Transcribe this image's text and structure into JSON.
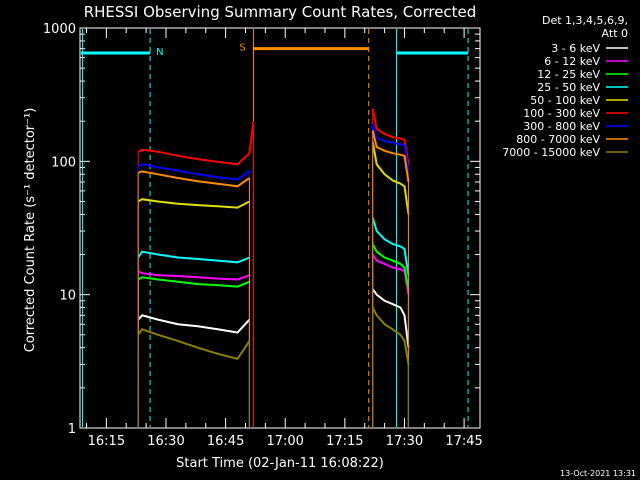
{
  "chart_data": {
    "type": "line",
    "title": "RHESSI Observing Summary Count Rates, Corrected",
    "xlabel": "Start Time (02-Jan-11 16:08:22)",
    "ylabel": "Corrected Count Rate (s⁻¹ detector⁻¹)",
    "y_scale": "log",
    "ylim": [
      1,
      1000
    ],
    "xlim": [
      "16:08:22",
      "17:49:00"
    ],
    "x_tick_labels": [
      "16:15",
      "16:30",
      "16:45",
      "17:00",
      "17:15",
      "17:30",
      "17:45"
    ],
    "y_tick_labels": [
      "1",
      "10",
      "100",
      "1000"
    ],
    "legend": {
      "title": "Det 1,3,4,5,6,9,",
      "subtitle": "Att 0",
      "placement": "top-right"
    },
    "series": [
      {
        "name": "3 - 6 keV",
        "color": "#ffffff",
        "segments": [
          {
            "x": [
              "16:23",
              "16:24",
              "16:28",
              "16:33",
              "16:38",
              "16:43",
              "16:48",
              "16:51"
            ],
            "y": [
              6.5,
              7,
              6.5,
              6,
              5.8,
              5.5,
              5.2,
              6.5
            ]
          },
          {
            "x": [
              "17:22",
              "17:23",
              "17:25",
              "17:27",
              "17:29",
              "17:30",
              "17:31"
            ],
            "y": [
              11,
              10,
              9,
              8.5,
              8,
              7,
              4
            ]
          }
        ]
      },
      {
        "name": "6 - 12 keV",
        "color": "#ff00ff",
        "segments": [
          {
            "x": [
              "16:23",
              "16:24",
              "16:28",
              "16:33",
              "16:38",
              "16:43",
              "16:48",
              "16:51"
            ],
            "y": [
              15,
              14.5,
              14,
              13.8,
              13.5,
              13.2,
              13,
              14
            ]
          },
          {
            "x": [
              "17:22",
              "17:23",
              "17:25",
              "17:27",
              "17:29",
              "17:30",
              "17:31"
            ],
            "y": [
              20,
              18,
              17,
              16,
              15.5,
              15,
              10
            ]
          }
        ]
      },
      {
        "name": "12 - 25 keV",
        "color": "#00ff00",
        "segments": [
          {
            "x": [
              "16:23",
              "16:24",
              "16:28",
              "16:33",
              "16:38",
              "16:43",
              "16:48",
              "16:51"
            ],
            "y": [
              13,
              13.5,
              13,
              12.5,
              12,
              11.8,
              11.5,
              12.5
            ]
          },
          {
            "x": [
              "17:22",
              "17:23",
              "17:25",
              "17:27",
              "17:29",
              "17:30",
              "17:31"
            ],
            "y": [
              24,
              21,
              19,
              18,
              17,
              16,
              11
            ]
          }
        ]
      },
      {
        "name": "25 - 50 keV",
        "color": "#00ffff",
        "segments": [
          {
            "x": [
              "16:23",
              "16:24",
              "16:28",
              "16:33",
              "16:38",
              "16:43",
              "16:48",
              "16:51"
            ],
            "y": [
              19,
              21,
              20,
              19,
              18.5,
              18,
              17.5,
              19
            ]
          },
          {
            "x": [
              "17:22",
              "17:23",
              "17:25",
              "17:27",
              "17:29",
              "17:30",
              "17:31"
            ],
            "y": [
              38,
              30,
              26,
              24,
              23,
              22,
              14
            ]
          }
        ]
      },
      {
        "name": "50 - 100 keV",
        "color": "#e0e000",
        "segments": [
          {
            "x": [
              "16:23",
              "16:24",
              "16:28",
              "16:33",
              "16:38",
              "16:43",
              "16:48",
              "16:51"
            ],
            "y": [
              50,
              52,
              50,
              48,
              47,
              46,
              45,
              50
            ]
          },
          {
            "x": [
              "17:22",
              "17:23",
              "17:25",
              "17:27",
              "17:29",
              "17:30",
              "17:31"
            ],
            "y": [
              140,
              95,
              80,
              72,
              68,
              65,
              40
            ]
          }
        ]
      },
      {
        "name": "100 - 300 keV",
        "color": "#ff0000",
        "segments": [
          {
            "x": [
              "16:23",
              "16:24",
              "16:28",
              "16:33",
              "16:38",
              "16:43",
              "16:48",
              "16:51",
              "16:52"
            ],
            "y": [
              118,
              122,
              118,
              110,
              104,
              99,
              95,
              115,
              200
            ]
          },
          {
            "x": [
              "17:22",
              "17:23",
              "17:25",
              "17:27",
              "17:29",
              "17:30",
              "17:31"
            ],
            "y": [
              250,
              175,
              160,
              152,
              148,
              145,
              95
            ]
          }
        ]
      },
      {
        "name": "300 - 800 keV",
        "color": "#0000ff",
        "segments": [
          {
            "x": [
              "16:23",
              "16:24",
              "16:28",
              "16:33",
              "16:38",
              "16:43",
              "16:48",
              "16:51"
            ],
            "y": [
              92,
              95,
              90,
              85,
              80,
              76,
              73,
              85
            ]
          },
          {
            "x": [
              "17:22",
              "17:23",
              "17:25",
              "17:27",
              "17:29",
              "17:30",
              "17:31"
            ],
            "y": [
              190,
              150,
              142,
              138,
              134,
              132,
              85
            ]
          }
        ]
      },
      {
        "name": "800 - 7000 keV",
        "color": "#ff8c00",
        "segments": [
          {
            "x": [
              "16:23",
              "16:24",
              "16:28",
              "16:33",
              "16:38",
              "16:43",
              "16:48",
              "16:51"
            ],
            "y": [
              82,
              84,
              80,
              75,
              71,
              68,
              65,
              75
            ]
          },
          {
            "x": [
              "17:22",
              "17:23",
              "17:25",
              "17:27",
              "17:29",
              "17:30",
              "17:31"
            ],
            "y": [
              170,
              128,
              120,
              115,
              112,
              110,
              70
            ]
          }
        ]
      },
      {
        "name": "7000 - 15000 keV",
        "color": "#8b8000",
        "segments": [
          {
            "x": [
              "16:23",
              "16:24",
              "16:28",
              "16:33",
              "16:38",
              "16:43",
              "16:48",
              "16:51"
            ],
            "y": [
              5,
              5.5,
              5,
              4.5,
              4,
              3.6,
              3.3,
              4.5
            ]
          },
          {
            "x": [
              "17:22",
              "17:23",
              "17:25",
              "17:27",
              "17:29",
              "17:30",
              "17:31"
            ],
            "y": [
              8,
              7,
              6,
              5.5,
              5,
              4.5,
              3
            ]
          }
        ]
      }
    ],
    "annotations": [
      {
        "label": "N",
        "color": "#00ffff",
        "x_start": "16:08:22",
        "x_end": "16:26",
        "level": 650
      },
      {
        "label": "S",
        "color": "#ff8c00",
        "x_start": "16:52",
        "x_end": "17:21",
        "level": 700
      },
      {
        "label": "",
        "color": "#00ffff",
        "x_start": "17:28",
        "x_end": "17:46",
        "level": 650
      }
    ],
    "vertical_markers": [
      {
        "x": "16:09",
        "color": "#00ffff",
        "style": "solid"
      },
      {
        "x": "16:26",
        "color": "#00ffff",
        "style": "dashed"
      },
      {
        "x": "16:52",
        "color": "#ff8c00",
        "style": "solid"
      },
      {
        "x": "17:21",
        "color": "#ff8c00",
        "style": "dashed"
      },
      {
        "x": "17:28",
        "color": "#00ffff",
        "style": "solid"
      },
      {
        "x": "17:46",
        "color": "#00ffff",
        "style": "dashed"
      }
    ],
    "timestamp": "13-Oct-2021 13:31"
  }
}
